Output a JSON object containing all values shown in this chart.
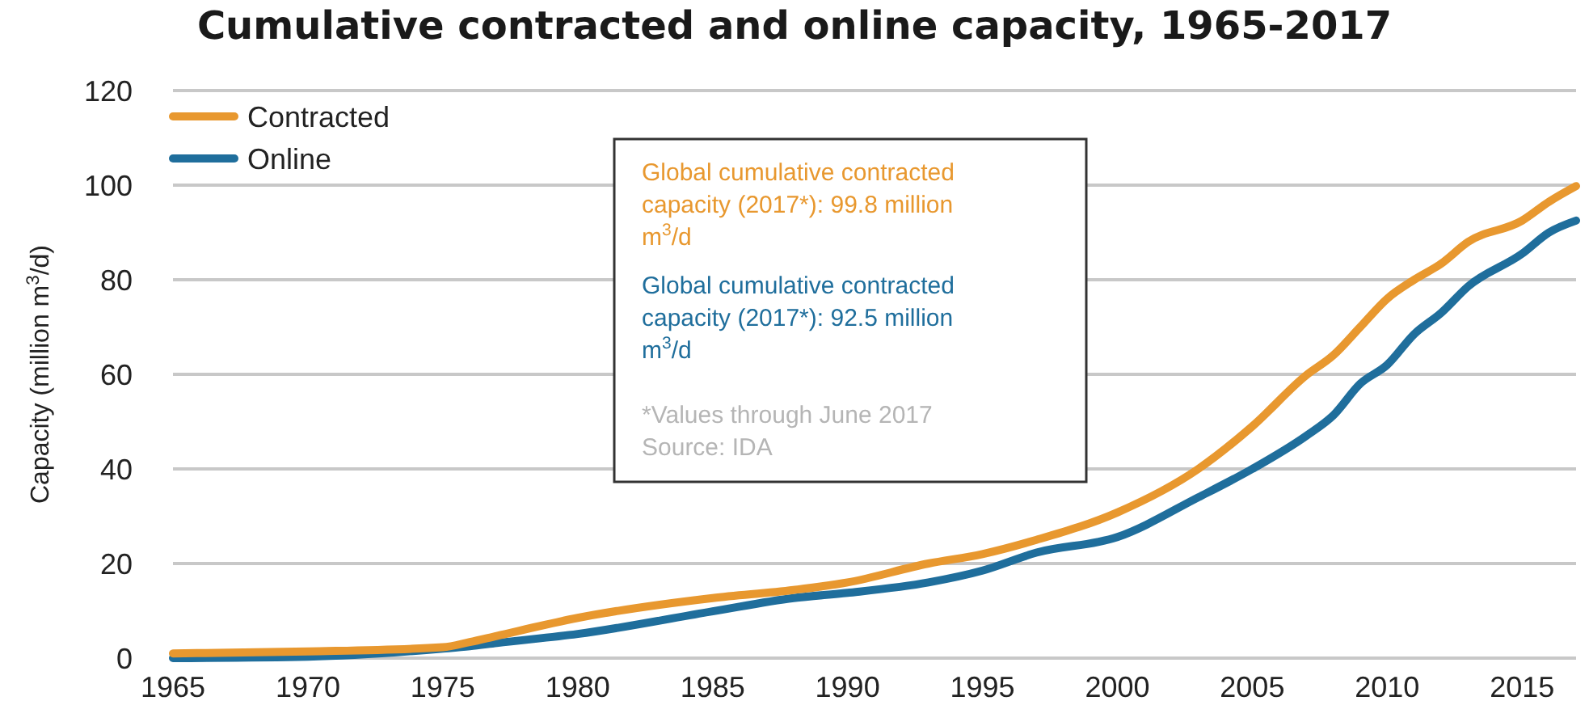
{
  "chart_data": {
    "type": "line",
    "title": "Cumulative contracted and online capacity, 1965-2017",
    "ylabel": "Capacity (million m$^{3}$/d)",
    "x": [
      1965,
      1970,
      1975,
      1976,
      1977,
      1980,
      1985,
      1988,
      1990,
      1993,
      1995,
      1997,
      2000,
      2003,
      2005,
      2007,
      2008,
      2009,
      2010,
      2011,
      2012,
      2013,
      2015,
      2016,
      2017
    ],
    "series": [
      {
        "name": "Contracted",
        "color": "#e8982f",
        "values": [
          1,
          1.4,
          2.3,
          3.4,
          4.7,
          8.5,
          12.7,
          14.4,
          16,
          20,
          22,
          25,
          30.8,
          40,
          49,
          59.8,
          64,
          70,
          76,
          80,
          83.4,
          88,
          92.5,
          96.5,
          99.8
        ]
      },
      {
        "name": "Online",
        "color": "#1f6e9c",
        "values": [
          0,
          0.3,
          2,
          2.5,
          3.2,
          5.1,
          9.9,
          12.7,
          13.8,
          16,
          18.5,
          22.3,
          25.6,
          34,
          40,
          47,
          51.3,
          58,
          62,
          68.5,
          73,
          78.6,
          85.5,
          90,
          92.5
        ]
      }
    ],
    "xlim": [
      1965,
      2017
    ],
    "xticks": [
      1965,
      1970,
      1975,
      1980,
      1985,
      1990,
      1995,
      2000,
      2005,
      2010,
      2015
    ],
    "ylim": [
      0,
      120
    ],
    "yticks": [
      0,
      20,
      40,
      60,
      80,
      100,
      120
    ],
    "grid": "y",
    "legend": "top left",
    "line_style": "solid",
    "marker": "none",
    "annotations": [
      "Global cumulative contracted capacity (2017*): 99.8 million m$^{3}$/d",
      "Global cumulative contracted capacity (2017*): 92.5 million m$^{3}$/d",
      "*Values through June 2017",
      "Source: IDA"
    ]
  }
}
